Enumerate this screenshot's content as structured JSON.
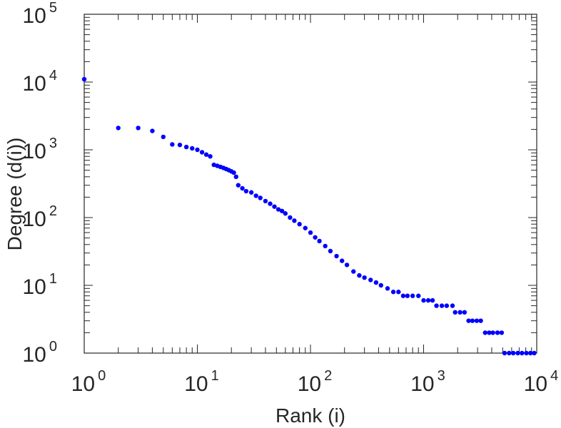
{
  "chart_data": {
    "type": "scatter",
    "title": "",
    "xlabel": "Rank (i)",
    "ylabel": "Degree (d(i))",
    "xscale": "log",
    "yscale": "log",
    "xlim": [
      1,
      10000
    ],
    "ylim": [
      1,
      100000
    ],
    "grid": false,
    "marker_color": "#0000ff",
    "x_ticks": [
      {
        "base": "10",
        "exp": "0",
        "value": 1
      },
      {
        "base": "10",
        "exp": "1",
        "value": 10
      },
      {
        "base": "10",
        "exp": "2",
        "value": 100
      },
      {
        "base": "10",
        "exp": "3",
        "value": 1000
      },
      {
        "base": "10",
        "exp": "4",
        "value": 10000
      }
    ],
    "y_ticks": [
      {
        "base": "10",
        "exp": "0",
        "value": 1
      },
      {
        "base": "10",
        "exp": "1",
        "value": 10
      },
      {
        "base": "10",
        "exp": "2",
        "value": 100
      },
      {
        "base": "10",
        "exp": "3",
        "value": 1000
      },
      {
        "base": "10",
        "exp": "4",
        "value": 10000
      },
      {
        "base": "10",
        "exp": "5",
        "value": 100000
      }
    ],
    "series": [
      {
        "points": [
          [
            1,
            11000
          ],
          [
            2,
            2100
          ],
          [
            3,
            2100
          ],
          [
            4,
            1900
          ],
          [
            5,
            1550
          ],
          [
            6,
            1200
          ],
          [
            7,
            1180
          ],
          [
            8,
            1100
          ],
          [
            9,
            1050
          ],
          [
            10,
            1000
          ],
          [
            11,
            920
          ],
          [
            12,
            850
          ],
          [
            13,
            800
          ],
          [
            14,
            600
          ],
          [
            15,
            580
          ],
          [
            16,
            560
          ],
          [
            17,
            540
          ],
          [
            18,
            520
          ],
          [
            19,
            500
          ],
          [
            20,
            480
          ],
          [
            21,
            460
          ],
          [
            22,
            400
          ],
          [
            23,
            300
          ],
          [
            25,
            270
          ],
          [
            27,
            245
          ],
          [
            30,
            235
          ],
          [
            33,
            210
          ],
          [
            36,
            195
          ],
          [
            40,
            175
          ],
          [
            44,
            160
          ],
          [
            48,
            145
          ],
          [
            52,
            132
          ],
          [
            56,
            125
          ],
          [
            60,
            115
          ],
          [
            66,
            100
          ],
          [
            72,
            90
          ],
          [
            80,
            80
          ],
          [
            90,
            70
          ],
          [
            100,
            60
          ],
          [
            110,
            51
          ],
          [
            120,
            45
          ],
          [
            135,
            38
          ],
          [
            150,
            32
          ],
          [
            170,
            27
          ],
          [
            190,
            23
          ],
          [
            210,
            20
          ],
          [
            240,
            16
          ],
          [
            270,
            14
          ],
          [
            300,
            13
          ],
          [
            340,
            12
          ],
          [
            380,
            11
          ],
          [
            420,
            10
          ],
          [
            480,
            9
          ],
          [
            540,
            8
          ],
          [
            600,
            8
          ],
          [
            660,
            7
          ],
          [
            720,
            7
          ],
          [
            800,
            7
          ],
          [
            900,
            7
          ],
          [
            1000,
            6
          ],
          [
            1100,
            6
          ],
          [
            1200,
            6
          ],
          [
            1300,
            5
          ],
          [
            1450,
            5
          ],
          [
            1600,
            5
          ],
          [
            1800,
            5
          ],
          [
            1900,
            4
          ],
          [
            2100,
            4
          ],
          [
            2300,
            4
          ],
          [
            2500,
            3
          ],
          [
            2700,
            3
          ],
          [
            2950,
            3
          ],
          [
            3200,
            3
          ],
          [
            3500,
            2
          ],
          [
            3800,
            2
          ],
          [
            4100,
            2
          ],
          [
            4500,
            2
          ],
          [
            4900,
            2
          ],
          [
            5200,
            1
          ],
          [
            5700,
            1
          ],
          [
            6200,
            1
          ],
          [
            6800,
            1
          ],
          [
            7400,
            1
          ],
          [
            8100,
            1
          ],
          [
            8800,
            1
          ],
          [
            9500,
            1
          ]
        ]
      }
    ]
  }
}
